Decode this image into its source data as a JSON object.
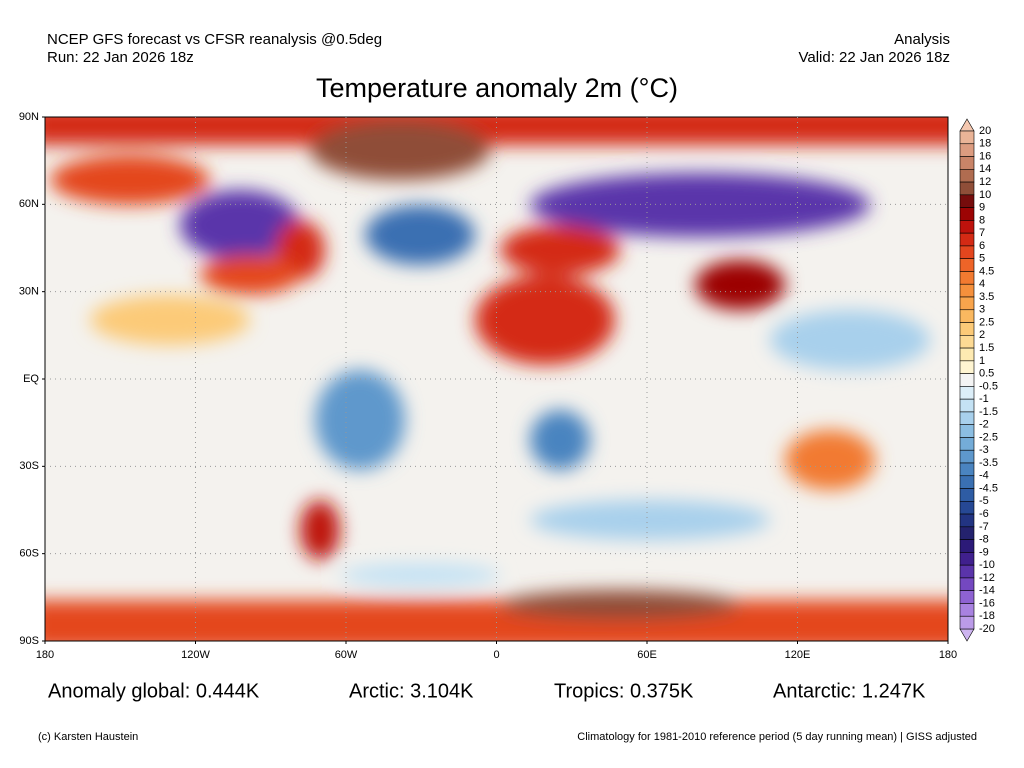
{
  "header": {
    "left": [
      "NCEP GFS forecast vs CFSR reanalysis @0.5deg",
      "Run: 22 Jan 2026 18z"
    ],
    "right": [
      "Analysis",
      "Valid: 22 Jan 2026 18z"
    ],
    "title": "Temperature anomaly 2m (°C)"
  },
  "map": {
    "lat_labels": [
      "90N",
      "60N",
      "30N",
      "EQ",
      "30S",
      "60S",
      "90S"
    ],
    "lon_labels": [
      "180",
      "120W",
      "60W",
      "0",
      "60E",
      "120E",
      "180"
    ]
  },
  "colorbar": {
    "labels": [
      20,
      18,
      16,
      14,
      12,
      10,
      9,
      8,
      7,
      6,
      5,
      4.5,
      4,
      3.5,
      3,
      2.5,
      2,
      1.5,
      1,
      0.5,
      -0.5,
      -1,
      -1.5,
      -2,
      -2.5,
      -3,
      -3.5,
      -4,
      -4.5,
      -5,
      -6,
      -7,
      -8,
      -9,
      -10,
      -12,
      -14,
      -16,
      -18,
      -20
    ],
    "colors": [
      "#f5c8b0",
      "#eab497",
      "#dc9c80",
      "#c98468",
      "#b06c50",
      "#8f4e38",
      "#760c0c",
      "#9c0404",
      "#be120c",
      "#d42a14",
      "#e4461e",
      "#ee6428",
      "#f27a30",
      "#f5903c",
      "#f8a44c",
      "#fab860",
      "#fcca78",
      "#fdda94",
      "#feeab2",
      "#fff5d2",
      "#f4f4f4",
      "#dceef8",
      "#c4e2f4",
      "#a8d0ec",
      "#8cbee2",
      "#74acd8",
      "#5e98cc",
      "#4a84c0",
      "#3a70b2",
      "#2e5ca4",
      "#264894",
      "#223482",
      "#24226e",
      "#2c1a78",
      "#40208e",
      "#5a34aa",
      "#7448c0",
      "#8e62d2",
      "#a882e0",
      "#bb9be8",
      "#cdb4f0"
    ]
  },
  "stats": [
    "Anomaly global: 0.444K",
    "Arctic: 3.104K",
    "Tropics: 0.375K",
    "Antarctic: 1.247K"
  ],
  "footer": {
    "credit": "(c) Karsten Haustein",
    "note": "Climatology for 1981-2010 reference period (5 day running mean) | GISS adjusted"
  }
}
